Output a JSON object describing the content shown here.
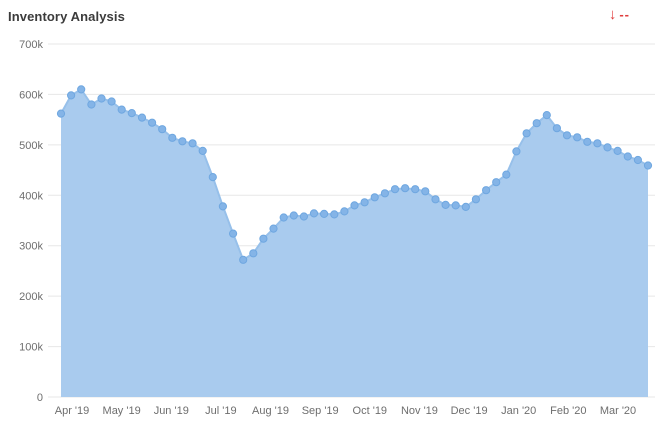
{
  "header": {
    "title": "Inventory Analysis",
    "trend": {
      "icon": "arrow-down-icon",
      "arrow_glyph": "↓",
      "value": "--",
      "color": "#e03c3c"
    }
  },
  "chart_data": {
    "type": "area",
    "title": "Inventory Analysis",
    "xlabel": "",
    "ylabel": "",
    "ylim": [
      0,
      700000
    ],
    "grid": "horizontal",
    "legend_position": "none",
    "y_tick_labels": [
      "0",
      "100k",
      "200k",
      "300k",
      "400k",
      "500k",
      "600k",
      "700k"
    ],
    "x_tick_labels": [
      "Apr '19",
      "May '19",
      "Jun '19",
      "Jul '19",
      "Aug '19",
      "Sep '19",
      "Oct '19",
      "Nov '19",
      "Dec '19",
      "Jan '20",
      "Feb '20",
      "Mar '20"
    ],
    "series": [
      {
        "name": "Inventory",
        "values": [
          562000,
          598000,
          610000,
          580000,
          592000,
          586000,
          570000,
          563000,
          554000,
          544000,
          531000,
          514000,
          507000,
          503000,
          488000,
          436000,
          378000,
          324000,
          272000,
          285000,
          314000,
          334000,
          356000,
          360000,
          358000,
          364000,
          363000,
          362000,
          368000,
          380000,
          386000,
          396000,
          404000,
          412000,
          414000,
          412000,
          408000,
          392000,
          381000,
          380000,
          377000,
          392000,
          410000,
          426000,
          441000,
          487000,
          523000,
          543000,
          559000,
          533000,
          519000,
          515000,
          506000,
          503000,
          495000,
          488000,
          477000,
          470000,
          459000
        ]
      }
    ],
    "colors": {
      "area_fill": "#a9cbee",
      "line": "#97c0ea",
      "marker_fill": "#84b4e7",
      "marker_stroke": "#6fa7e0",
      "grid": "#e7e7e7",
      "axis_text": "#6e6e6e"
    }
  }
}
